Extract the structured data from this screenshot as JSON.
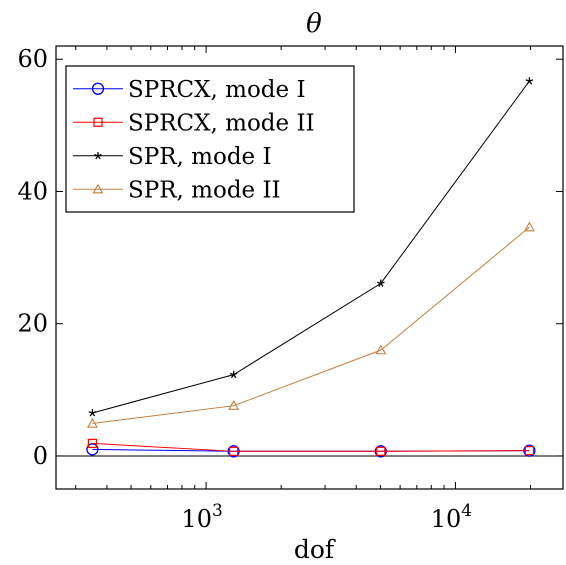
{
  "chart_data": {
    "type": "line",
    "title": "θ",
    "xlabel": "dof",
    "ylabel": "",
    "xscale": "log",
    "xlim": [
      250,
      27000
    ],
    "ylim": [
      -5,
      62
    ],
    "grid": false,
    "legend_position": "top-left",
    "x_tick_labels": [
      {
        "base": "10",
        "exp": "3",
        "value": 1000
      },
      {
        "base": "10",
        "exp": "4",
        "value": 10000
      }
    ],
    "y_ticks": [
      {
        "label": "0",
        "value": 0
      },
      {
        "label": "20",
        "value": 20
      },
      {
        "label": "40",
        "value": 40
      },
      {
        "label": "60",
        "value": 60
      }
    ],
    "zero_line": true,
    "series": [
      {
        "name": "SPRCX, mode I",
        "color": "#0000ff",
        "marker": "circle",
        "x": [
          350,
          1290,
          5020,
          19800
        ],
        "y": [
          1.0,
          0.7,
          0.7,
          0.8
        ]
      },
      {
        "name": "SPRCX, mode II",
        "color": "#ff0000",
        "marker": "square",
        "x": [
          350,
          1290,
          5020,
          19800
        ],
        "y": [
          1.9,
          0.7,
          0.7,
          0.8
        ]
      },
      {
        "name": "SPR, mode I",
        "color": "#000000",
        "marker": "star",
        "x": [
          350,
          1290,
          5020,
          19800
        ],
        "y": [
          6.5,
          12.3,
          26.1,
          56.7
        ]
      },
      {
        "name": "SPR, mode II",
        "color": "#bf8040",
        "marker": "triangle",
        "x": [
          350,
          1290,
          5020,
          19800
        ],
        "y": [
          4.9,
          7.6,
          16.0,
          34.6
        ]
      }
    ]
  }
}
